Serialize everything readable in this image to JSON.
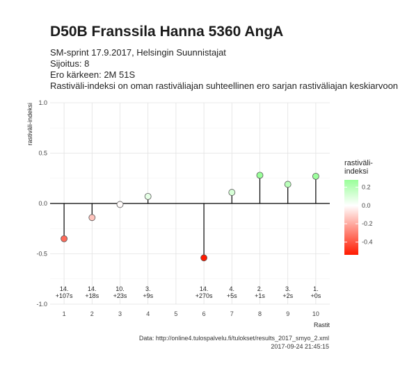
{
  "header": {
    "title": "D50B Franssila Hanna 5360 AngA",
    "subtitle_lines": [
      "SM-sprint 17.9.2017, Helsingin Suunnistajat",
      "Sijoitus: 8",
      "Ero kärkeen: 2M 51S",
      "Rastiväli-indeksi on oman rastiväliajan suhteellinen ero sarjan rastiväliajan keskiarvoon"
    ]
  },
  "caption": {
    "source": "Data: http://online4.tulospalvelu.fi/tulokset/results_2017_smyo_2.xml",
    "timestamp": "2017-09-24 21:45:15"
  },
  "chart_data": {
    "type": "scatter",
    "style": "lollipop",
    "xlabel": "Rastit",
    "ylabel": "rastiväli-indeksi",
    "x_ticks": [
      "1",
      "2",
      "3",
      "4",
      "5",
      "6",
      "7",
      "8",
      "9",
      "10"
    ],
    "y_ticks": [
      "1.0",
      "0.5",
      "0.0",
      "-0.5",
      "-1.0"
    ],
    "xlim": [
      0.5,
      10.5
    ],
    "ylim": [
      -1.0,
      1.0
    ],
    "grid": true,
    "points": [
      {
        "x": 1,
        "y": -0.35,
        "rank": "14.",
        "diff": "+107s"
      },
      {
        "x": 2,
        "y": -0.14,
        "rank": "14.",
        "diff": "+18s"
      },
      {
        "x": 3,
        "y": -0.01,
        "rank": "10.",
        "diff": "+23s"
      },
      {
        "x": 4,
        "y": 0.07,
        "rank": "3.",
        "diff": "+9s"
      },
      {
        "x": 6,
        "y": -0.54,
        "rank": "14.",
        "diff": "+270s"
      },
      {
        "x": 7,
        "y": 0.11,
        "rank": "4.",
        "diff": "+5s"
      },
      {
        "x": 8,
        "y": 0.28,
        "rank": "2.",
        "diff": "+1s"
      },
      {
        "x": 9,
        "y": 0.19,
        "rank": "3.",
        "diff": "+2s"
      },
      {
        "x": 10,
        "y": 0.27,
        "rank": "1.",
        "diff": "+0s"
      }
    ],
    "legend": {
      "title": "rastiväli-\nindeksi",
      "placement": "right",
      "ticks": [
        "0.2",
        "0.0",
        "-0.2",
        "-0.4"
      ],
      "tick_values": [
        0.2,
        0.0,
        -0.2,
        -0.4
      ],
      "range": [
        -0.54,
        0.28
      ],
      "colors": {
        "low": "#ff1a00",
        "mid": "#ffffff",
        "high": "#99ff99"
      }
    }
  }
}
